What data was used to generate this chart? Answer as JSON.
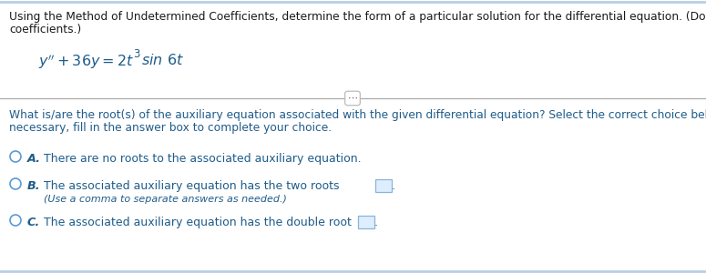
{
  "bg_color": "#ffffff",
  "border_color": "#b8cfe4",
  "text_color": "#1a1a1a",
  "blue_color": "#1e5c8a",
  "radio_color": "#5b9bd5",
  "top_text_line1": "Using the Method of Undetermined Coefficients, determine the form of a particular solution for the differential equation. (Do not evaluate",
  "top_text_line2": "coefficients.)",
  "question_line1": "What is/are the root(s) of the auxiliary equation associated with the given differential equation? Select the correct choice below and, if",
  "question_line2": "necessary, fill in the answer box to complete your choice.",
  "choice_A_text": "There are no roots to the associated auxiliary equation.",
  "choice_B_text1": "The associated auxiliary equation has the two roots",
  "choice_B_text2": "(Use a comma to separate answers as needed.)",
  "choice_C_text": "The associated auxiliary equation has the double root",
  "font_size_top": 8.8,
  "font_size_eq": 11.5,
  "font_size_choices": 9.0,
  "font_size_label": 9.2
}
